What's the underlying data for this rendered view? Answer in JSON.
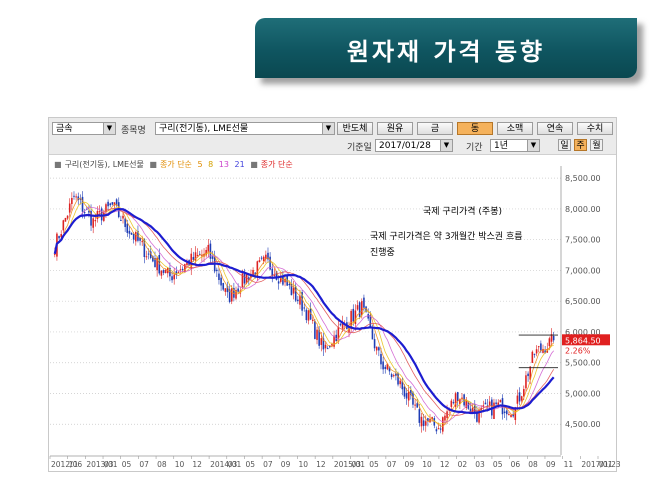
{
  "banner": {
    "title": "원자재 가격 동향"
  },
  "toolbar": {
    "category": "금속",
    "item_label": "종목명",
    "item_value": "구리(전기동), LME선물",
    "buttons": [
      "반도체",
      "원유",
      "금",
      "동",
      "소맥",
      "연속",
      "수치"
    ],
    "active_button": "동",
    "date_label": "기준일",
    "date_value": "2017/01/28",
    "period_label": "기간",
    "period_value": "1년",
    "freq_buttons": [
      "일",
      "주",
      "월"
    ],
    "active_freq": "주"
  },
  "legend": {
    "series": "구리(전기동), LME선물",
    "ma_label": "종가 단순",
    "ma_periods": [
      "5",
      "8",
      "13",
      "21"
    ],
    "ma2_label": "종가 단순"
  },
  "annotations": {
    "title": "국제 구리가격 (주봉)",
    "line1": "국제 구리가격은 약 3개월간 박스권 흐름",
    "line2": "진행중"
  },
  "price_labels": {
    "last": "5,864.50",
    "change": "2.26%"
  },
  "chart_data": {
    "type": "candlestick",
    "title": "국제 구리가격 (주봉)",
    "y_axis": {
      "min": 4000,
      "max": 8600,
      "ticks": [
        8500,
        8000,
        7500,
        7000,
        6500,
        6000,
        5500,
        5000,
        4500
      ],
      "tick_labels": [
        "8,500.00",
        "8,000.00",
        "7,500.00",
        "7,000.00",
        "6,500.00",
        "6,000.00",
        "5,500.00",
        "5,000.00",
        "4,500.00"
      ]
    },
    "x_tick_labels": [
      "2012/06",
      "11",
      "2013/01",
      "03",
      "05",
      "07",
      "08",
      "10",
      "12",
      "2014/01",
      "03",
      "05",
      "07",
      "09",
      "10",
      "12",
      "2015/01",
      "03",
      "05",
      "07",
      "09",
      "10",
      "12",
      "02",
      "03",
      "05",
      "06",
      "08",
      "09",
      "11",
      "2017/01",
      "01/23"
    ],
    "close_approx": [
      [
        "2012/06",
        7400
      ],
      [
        "2012/09",
        8200
      ],
      [
        "2012/11",
        7800
      ],
      [
        "2013/01",
        8050
      ],
      [
        "2013/03",
        7600
      ],
      [
        "2013/05",
        7200
      ],
      [
        "2013/07",
        6900
      ],
      [
        "2013/10",
        7150
      ],
      [
        "2013/12",
        7300
      ],
      [
        "2014/03",
        6550
      ],
      [
        "2014/05",
        6900
      ],
      [
        "2014/07",
        7150
      ],
      [
        "2014/09",
        6800
      ],
      [
        "2014/12",
        6400
      ],
      [
        "2015/01",
        5700
      ],
      [
        "2015/04",
        6100
      ],
      [
        "2015/05",
        6400
      ],
      [
        "2015/07",
        5500
      ],
      [
        "2015/09",
        5150
      ],
      [
        "2015/12",
        4600
      ],
      [
        "2016/01",
        4450
      ],
      [
        "2016/03",
        5000
      ],
      [
        "2016/05",
        4650
      ],
      [
        "2016/08",
        4800
      ],
      [
        "2016/10",
        4750
      ],
      [
        "2016/11",
        5650
      ],
      [
        "2017/01",
        5864.5
      ]
    ],
    "last_value": 5864.5,
    "moving_averages": [
      5,
      8,
      13,
      21
    ]
  },
  "colors": {
    "up": "#dd2222",
    "down": "#1f3db5",
    "ma_long": "#1d1dd0",
    "banner": "#0f5560",
    "price_tag": "#e02020"
  }
}
